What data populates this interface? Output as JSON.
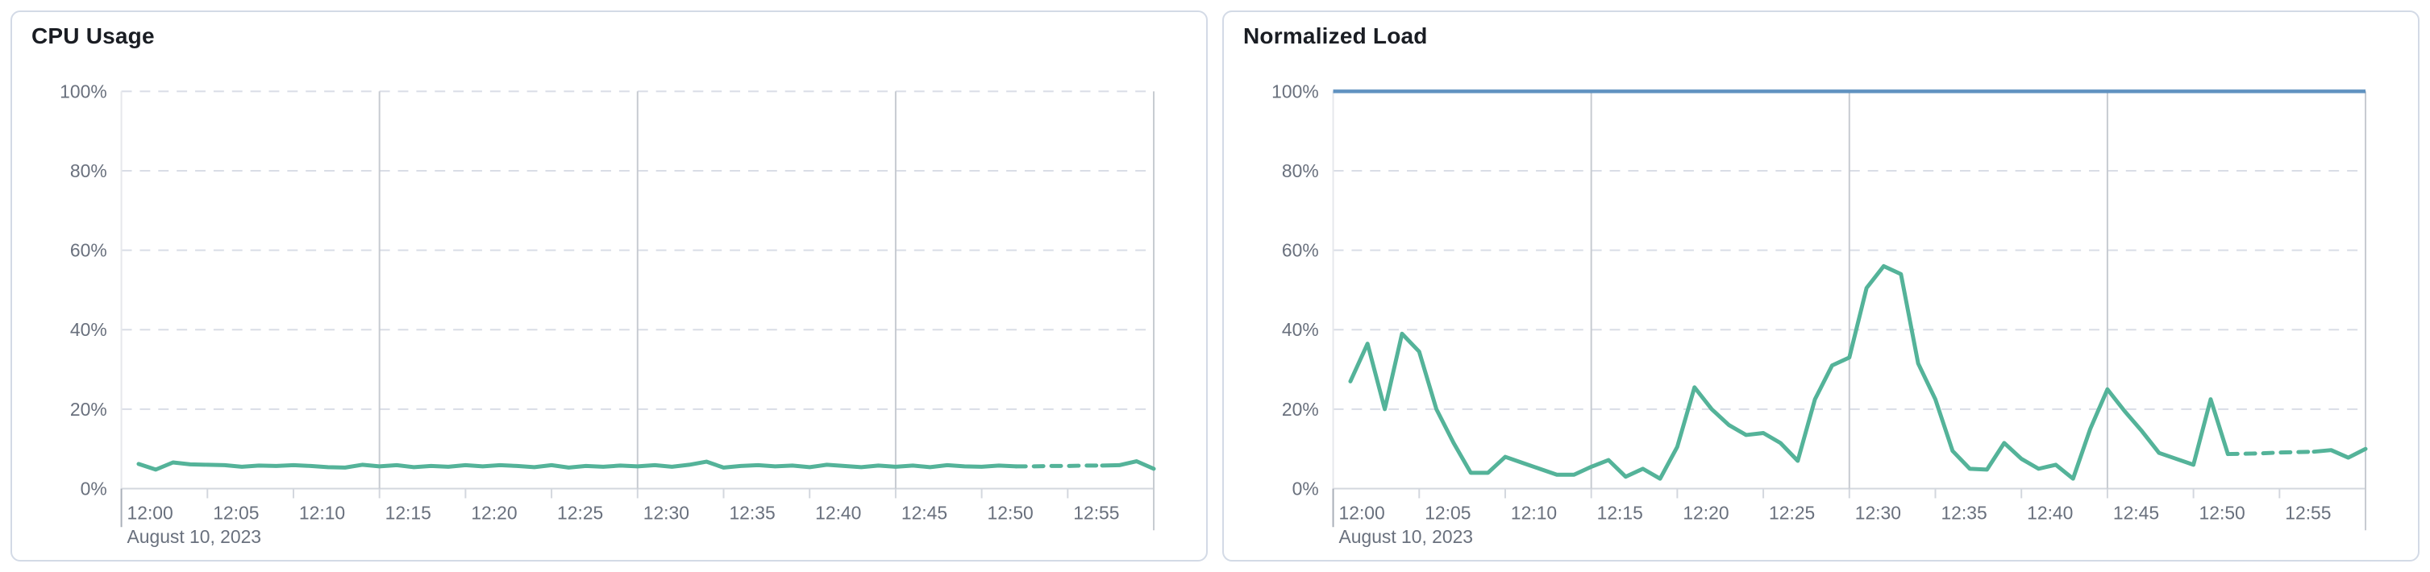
{
  "colors": {
    "series_green": "#54b399",
    "reference_blue": "#6092c0",
    "grid_dashed": "#d9dde6",
    "grid_vertical": "#c7cbd1",
    "plot_left_border": "#e6e8ec",
    "axis_line": "#d3d7de",
    "first_tick": "#a9afb9",
    "axis_label": "#69707d",
    "title_text": "#1a1d23",
    "panel_border": "#d3dae6"
  },
  "chart_data": [
    {
      "type": "line",
      "title": "CPU Usage",
      "x_axis": {
        "start_minute": 0,
        "end_minute": 60,
        "tick_interval_minutes": 5,
        "tick_labels": [
          "12:00",
          "12:05",
          "12:10",
          "12:15",
          "12:20",
          "12:25",
          "12:30",
          "12:35",
          "12:40",
          "12:45",
          "12:50",
          "12:55"
        ],
        "date_label": "August 10, 2023",
        "vertical_gridline_minutes": [
          15,
          30,
          45
        ]
      },
      "y_axis": {
        "min": 0,
        "max": 100,
        "tick_values": [
          0,
          20,
          40,
          60,
          80,
          100
        ],
        "tick_labels": [
          "0%",
          "20%",
          "40%",
          "60%",
          "80%",
          "100%"
        ]
      },
      "series": [
        {
          "name": "cpu-usage",
          "color": "#54b399",
          "dashed_from_minute": 52,
          "dashed_to_minute": 57,
          "points": [
            [
              1,
              6.2
            ],
            [
              2,
              4.8
            ],
            [
              3,
              6.6
            ],
            [
              4,
              6.1
            ],
            [
              5,
              6.0
            ],
            [
              6,
              5.9
            ],
            [
              7,
              5.5
            ],
            [
              8,
              5.8
            ],
            [
              9,
              5.7
            ],
            [
              10,
              5.9
            ],
            [
              11,
              5.7
            ],
            [
              12,
              5.4
            ],
            [
              13,
              5.3
            ],
            [
              14,
              6.0
            ],
            [
              15,
              5.6
            ],
            [
              16,
              5.9
            ],
            [
              17,
              5.4
            ],
            [
              18,
              5.7
            ],
            [
              19,
              5.5
            ],
            [
              20,
              5.9
            ],
            [
              21,
              5.6
            ],
            [
              22,
              5.9
            ],
            [
              23,
              5.7
            ],
            [
              24,
              5.4
            ],
            [
              25,
              5.9
            ],
            [
              26,
              5.3
            ],
            [
              27,
              5.7
            ],
            [
              28,
              5.5
            ],
            [
              29,
              5.8
            ],
            [
              30,
              5.6
            ],
            [
              31,
              5.9
            ],
            [
              32,
              5.5
            ],
            [
              33,
              6.0
            ],
            [
              34,
              6.8
            ],
            [
              35,
              5.3
            ],
            [
              36,
              5.7
            ],
            [
              37,
              5.9
            ],
            [
              38,
              5.6
            ],
            [
              39,
              5.8
            ],
            [
              40,
              5.4
            ],
            [
              41,
              6.0
            ],
            [
              42,
              5.7
            ],
            [
              43,
              5.4
            ],
            [
              44,
              5.8
            ],
            [
              45,
              5.5
            ],
            [
              46,
              5.8
            ],
            [
              47,
              5.4
            ],
            [
              48,
              5.9
            ],
            [
              49,
              5.6
            ],
            [
              50,
              5.5
            ],
            [
              51,
              5.8
            ],
            [
              52,
              5.6
            ],
            [
              53,
              5.6
            ],
            [
              54,
              5.7
            ],
            [
              55,
              5.7
            ],
            [
              56,
              5.8
            ],
            [
              57,
              5.8
            ],
            [
              58,
              5.9
            ],
            [
              59,
              6.9
            ],
            [
              60,
              5.0
            ]
          ]
        }
      ]
    },
    {
      "type": "line",
      "title": "Normalized Load",
      "reference_line": {
        "value": 100,
        "color": "#6092c0"
      },
      "x_axis": {
        "start_minute": 0,
        "end_minute": 60,
        "tick_interval_minutes": 5,
        "tick_labels": [
          "12:00",
          "12:05",
          "12:10",
          "12:15",
          "12:20",
          "12:25",
          "12:30",
          "12:35",
          "12:40",
          "12:45",
          "12:50",
          "12:55"
        ],
        "date_label": "August 10, 2023",
        "vertical_gridline_minutes": [
          15,
          30,
          45
        ]
      },
      "y_axis": {
        "min": 0,
        "max": 100,
        "tick_values": [
          0,
          20,
          40,
          60,
          80,
          100
        ],
        "tick_labels": [
          "0%",
          "20%",
          "40%",
          "60%",
          "80%",
          "100%"
        ]
      },
      "series": [
        {
          "name": "normalized-load",
          "color": "#54b399",
          "dashed_from_minute": 52,
          "dashed_to_minute": 57,
          "points": [
            [
              1,
              27
            ],
            [
              2,
              36.5
            ],
            [
              3,
              20
            ],
            [
              4,
              39
            ],
            [
              5,
              34.5
            ],
            [
              6,
              20
            ],
            [
              7,
              11.5
            ],
            [
              8,
              4
            ],
            [
              9,
              4
            ],
            [
              10,
              8
            ],
            [
              11,
              6.5
            ],
            [
              12,
              5
            ],
            [
              13,
              3.5
            ],
            [
              14,
              3.5
            ],
            [
              15,
              5.5
            ],
            [
              16,
              7.2
            ],
            [
              17,
              3
            ],
            [
              18,
              5
            ],
            [
              19,
              2.5
            ],
            [
              20,
              10.5
            ],
            [
              21,
              25.5
            ],
            [
              22,
              20
            ],
            [
              23,
              16
            ],
            [
              24,
              13.5
            ],
            [
              25,
              14
            ],
            [
              26,
              11.5
            ],
            [
              27,
              7
            ],
            [
              28,
              22.5
            ],
            [
              29,
              31
            ],
            [
              30,
              33
            ],
            [
              31,
              50.5
            ],
            [
              32,
              56
            ],
            [
              33,
              54
            ],
            [
              34,
              31.5
            ],
            [
              35,
              22.5
            ],
            [
              36,
              9.5
            ],
            [
              37,
              5
            ],
            [
              38,
              4.8
            ],
            [
              39,
              11.5
            ],
            [
              40,
              7.5
            ],
            [
              41,
              5
            ],
            [
              42,
              6
            ],
            [
              43,
              2.5
            ],
            [
              44,
              15
            ],
            [
              45,
              25
            ],
            [
              46,
              19.5
            ],
            [
              47,
              14.5
            ],
            [
              48,
              9
            ],
            [
              49,
              7.5
            ],
            [
              50,
              6
            ],
            [
              51,
              22.5
            ],
            [
              52,
              8.7
            ],
            [
              53,
              8.8
            ],
            [
              54,
              8.9
            ],
            [
              55,
              9.1
            ],
            [
              56,
              9.2
            ],
            [
              57,
              9.3
            ],
            [
              58,
              9.7
            ],
            [
              59,
              7.8
            ],
            [
              60,
              10
            ]
          ]
        }
      ]
    }
  ]
}
